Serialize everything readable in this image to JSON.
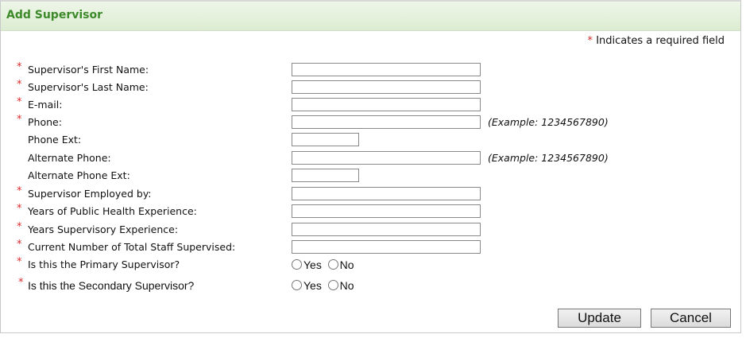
{
  "title": "Add Supervisor",
  "required_note": "Indicates a required field",
  "required_marker": "*",
  "fields": [
    {
      "label": "Supervisor's First Name:",
      "required": true,
      "value": ""
    },
    {
      "label": "Supervisor's Last Name:",
      "required": true,
      "value": ""
    },
    {
      "label": "E-mail:",
      "required": true,
      "value": ""
    },
    {
      "label": "Phone:",
      "required": true,
      "value": "",
      "hint": "(Example: 1234567890)"
    },
    {
      "label": "Phone Ext:",
      "required": false,
      "value": ""
    },
    {
      "label": "Alternate Phone:",
      "required": false,
      "value": "",
      "hint": "(Example: 1234567890)"
    },
    {
      "label": "Alternate Phone Ext:",
      "required": false,
      "value": ""
    },
    {
      "label": "Supervisor Employed by:",
      "required": true,
      "value": ""
    },
    {
      "label": "Years of Public Health Experience:",
      "required": true,
      "value": ""
    },
    {
      "label": "Years Supervisory Experience:",
      "required": true,
      "value": ""
    },
    {
      "label": "Current Number of Total Staff Supervised:",
      "required": true,
      "value": ""
    }
  ],
  "radios": [
    {
      "label": "Is this the Primary Supervisor?",
      "yes": "Yes",
      "no": "No",
      "selected": null
    },
    {
      "label": "Is this the Secondary Supervisor?",
      "yes": "Yes",
      "no": "No",
      "selected": null
    }
  ],
  "buttons": {
    "update": "Update",
    "cancel": "Cancel"
  },
  "colors": {
    "title": "#3d8a2a",
    "required": "#d92b2b"
  }
}
